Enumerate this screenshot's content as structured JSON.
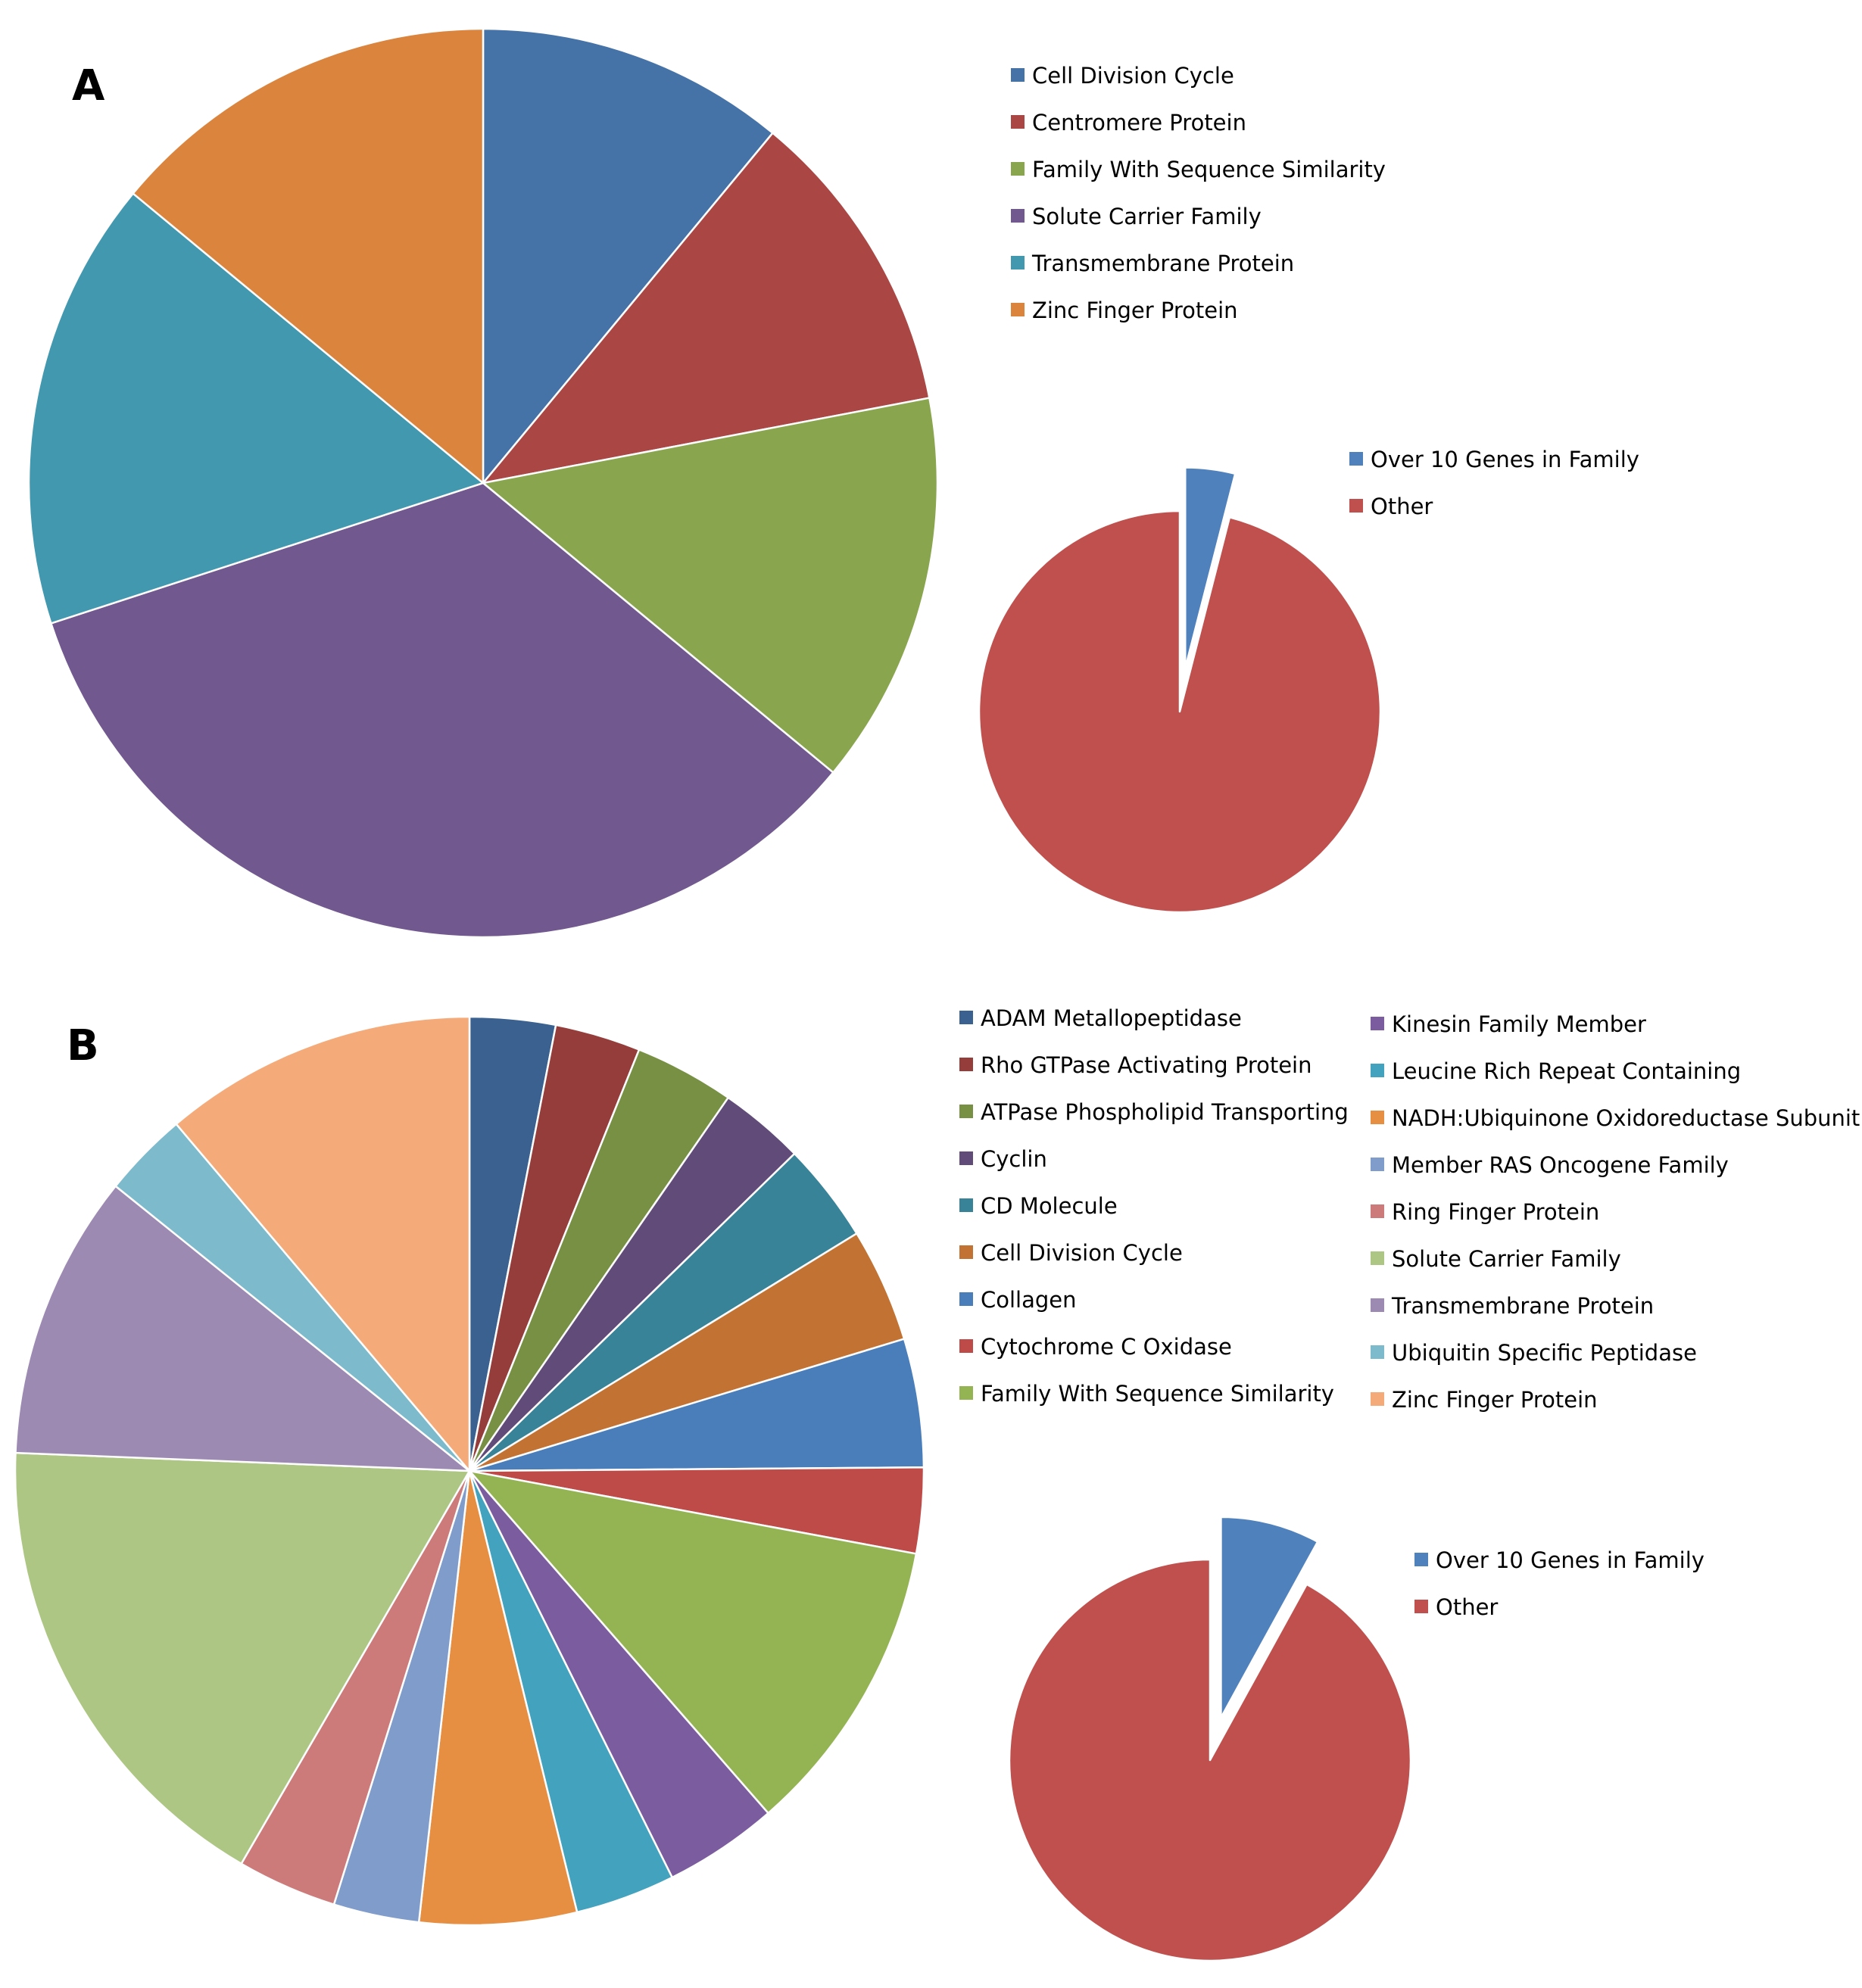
{
  "chart_data": [
    {
      "panel": "A",
      "type": "pie",
      "title": "",
      "categories": [
        "Cell Division Cycle",
        "Centromere Protein",
        "Family With Sequence Similarity",
        "Solute Carrier Family",
        "Transmembrane Protein",
        "Zinc Finger Protein"
      ],
      "values": [
        11,
        11,
        14,
        34,
        16,
        14
      ],
      "colors": [
        "#4572A7",
        "#AA4643",
        "#89A54E",
        "#71588F",
        "#4198AF",
        "#DB843D"
      ],
      "legend": "right"
    },
    {
      "panel": "A",
      "type": "pie",
      "title": "",
      "categories": [
        "Over 10 Genes in Family",
        "Other"
      ],
      "values": [
        4,
        96
      ],
      "colors": [
        "#4F81BD",
        "#C0504D"
      ],
      "exploded": [
        "Over 10 Genes in Family"
      ],
      "legend": "right"
    },
    {
      "panel": "B",
      "type": "pie",
      "title": "",
      "categories": [
        "ADAM Metallopeptidase",
        "Rho GTPase Activating Protein",
        "ATPase Phospholipid Transporting",
        "Cyclin",
        "CD Molecule",
        "Cell Division Cycle",
        "Collagen",
        "Cytochrome C Oxidase",
        "Family With Sequence Similarity",
        "Kinesin Family Member",
        "Leucine Rich Repeat Containing",
        "NADH:Ubiquinone Oxidoreductase Subunit",
        "Member RAS Oncogene Family",
        "Ring Finger Protein",
        "Solute Carrier Family",
        "Transmembrane Protein",
        "Ubiquitin Specific Peptidase",
        "Zinc Finger Protein"
      ],
      "values": [
        3,
        3,
        3.5,
        3,
        3.5,
        4,
        4.5,
        3,
        10.5,
        4,
        3.5,
        5.5,
        3,
        3.5,
        17,
        10,
        3,
        11
      ],
      "colors": [
        "#3A6190",
        "#953D3A",
        "#779044",
        "#614B79",
        "#388397",
        "#C27333",
        "#4A7EBB",
        "#BE4B48",
        "#94B454",
        "#7B5C9E",
        "#43A2BD",
        "#E68E42",
        "#7F9CCB",
        "#CC7A7A",
        "#ADC683",
        "#9C8AB2",
        "#7DBACC",
        "#F5AA79"
      ],
      "legend": "right, two columns"
    },
    {
      "panel": "B",
      "type": "pie",
      "title": "",
      "categories": [
        "Over 10 Genes in Family",
        "Other"
      ],
      "values": [
        8,
        92
      ],
      "colors": [
        "#4F81BD",
        "#C0504D"
      ],
      "exploded": [
        "Over 10 Genes in Family"
      ],
      "legend": "right"
    }
  ],
  "panels": {
    "a_label": "A",
    "b_label": "B"
  },
  "legend_a": [
    "Cell Division Cycle",
    "Centromere Protein",
    "Family With Sequence Similarity",
    "Solute Carrier Family",
    "Transmembrane Protein",
    "Zinc Finger Protein"
  ],
  "legend_a_small": [
    "Over 10 Genes in Family",
    "Other"
  ],
  "legend_b_col1": [
    "ADAM Metallopeptidase",
    "Rho GTPase Activating Protein",
    "ATPase Phospholipid Transporting",
    "Cyclin",
    "CD Molecule",
    "Cell Division Cycle",
    "Collagen",
    "Cytochrome C Oxidase",
    "Family With Sequence Similarity"
  ],
  "legend_b_col2": [
    "Kinesin Family Member",
    "Leucine Rich Repeat Containing",
    "NADH:Ubiquinone Oxidoreductase Subunit",
    "Member RAS Oncogene Family",
    "Ring Finger Protein",
    "Solute Carrier Family",
    "Transmembrane Protein",
    "Ubiquitin Specific Peptidase",
    "Zinc Finger Protein"
  ],
  "legend_b_small": [
    "Over 10 Genes in Family",
    "Other"
  ]
}
